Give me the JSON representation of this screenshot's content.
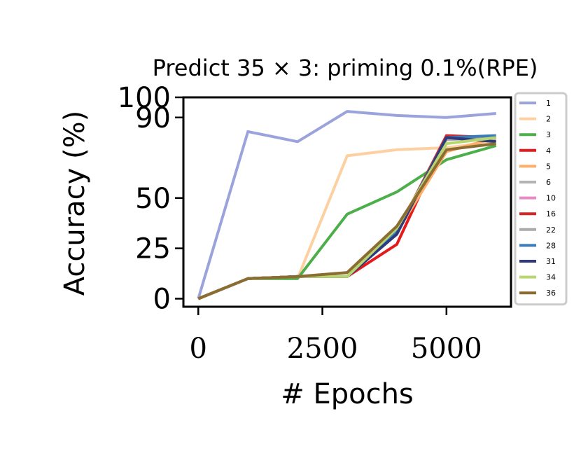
{
  "chart_data": {
    "type": "line",
    "title": "Predict 35 × 3: priming 0.1%(RPE)",
    "xlabel": "# Epochs",
    "ylabel": "Accuracy (%)",
    "xlim": [
      -300,
      6300
    ],
    "ylim": [
      -4,
      100
    ],
    "xticks": [
      0,
      2500,
      5000
    ],
    "yticks": [
      0,
      25,
      50,
      90,
      100
    ],
    "grid": false,
    "legend_position": "right",
    "x": [
      0,
      1000,
      2000,
      3000,
      4000,
      5000,
      6000
    ],
    "series": [
      {
        "name": "1",
        "color": "#9ba3dc",
        "values": [
          0,
          83,
          78,
          93,
          91,
          90,
          92
        ]
      },
      {
        "name": "2",
        "color": "#fdd0a2",
        "values": [
          0,
          10,
          10,
          71,
          74,
          75,
          78
        ]
      },
      {
        "name": "3",
        "color": "#4daf4a",
        "values": [
          0,
          10,
          10,
          42,
          53,
          69,
          76
        ]
      },
      {
        "name": "4",
        "color": "#e41a1c",
        "values": [
          0,
          10,
          11,
          11,
          27,
          80,
          80
        ]
      },
      {
        "name": "5",
        "color": "#fdae6b",
        "values": [
          0,
          10,
          11,
          11,
          33,
          73,
          80
        ]
      },
      {
        "name": "6",
        "color": "#b3b3b3",
        "values": [
          0,
          10,
          11,
          11,
          33,
          80,
          79
        ]
      },
      {
        "name": "10",
        "color": "#e78ac3",
        "values": [
          0,
          10,
          11,
          11,
          33,
          80,
          80
        ]
      },
      {
        "name": "16",
        "color": "#d62728",
        "values": [
          0,
          10,
          11,
          11,
          33,
          81,
          80
        ]
      },
      {
        "name": "22",
        "color": "#aaaaaa",
        "values": [
          0,
          10,
          11,
          11,
          33,
          79,
          80
        ]
      },
      {
        "name": "28",
        "color": "#3a7cb8",
        "values": [
          0,
          10,
          11,
          11,
          33,
          80,
          81
        ]
      },
      {
        "name": "31",
        "color": "#2e3a7d",
        "values": [
          0,
          10,
          11,
          11,
          32,
          80,
          78
        ]
      },
      {
        "name": "34",
        "color": "#b8d66f",
        "values": [
          0,
          10,
          11,
          11,
          35,
          77,
          80
        ]
      },
      {
        "name": "36",
        "color": "#8c6d31",
        "values": [
          0,
          10,
          11,
          13,
          36,
          74,
          77
        ]
      }
    ]
  }
}
